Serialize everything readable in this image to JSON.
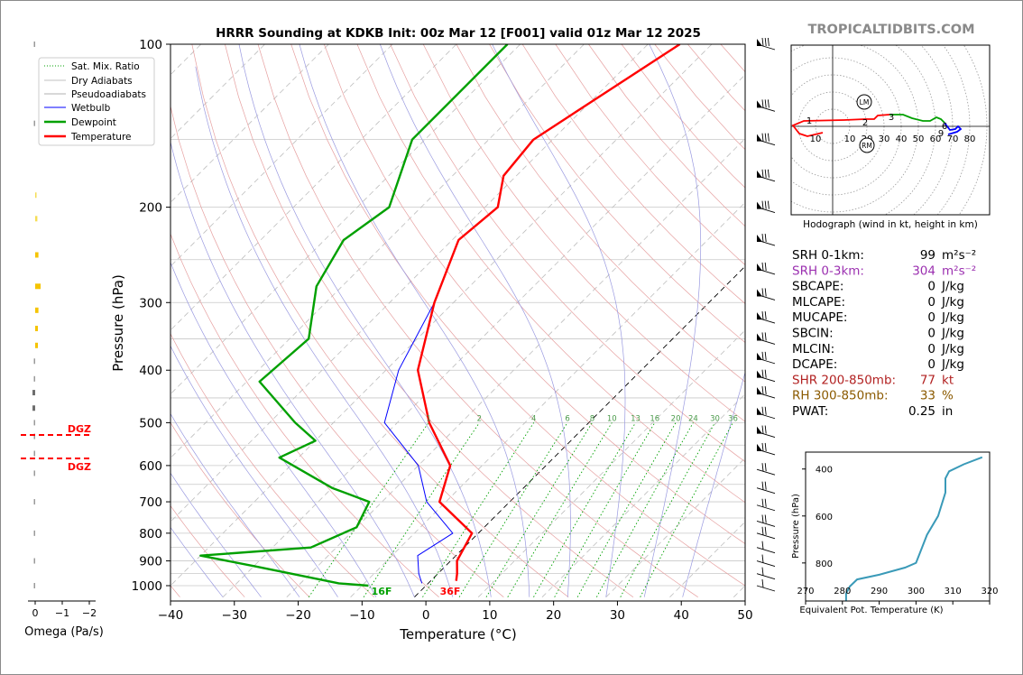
{
  "title": "HRRR Sounding at KDKB Init: 00z Mar 12 [F001] valid 01z Mar 12 2025",
  "watermark": "TROPICALTIDBITS.COM",
  "skewt": {
    "ylabel": "Pressure (hPa)",
    "xlabel": "Temperature (°C)",
    "p_ticks": [
      "100",
      "200",
      "300",
      "400",
      "500",
      "600",
      "700",
      "800",
      "900",
      "1000"
    ],
    "t_ticks": [
      "−40",
      "−30",
      "−20",
      "−10",
      "0",
      "10",
      "20",
      "30",
      "40",
      "50"
    ],
    "mixing_labels": [
      "1",
      "2",
      "4",
      "6",
      "8",
      "10",
      "13",
      "16",
      "20",
      "24",
      "30",
      "36"
    ],
    "sfc_dewpoint_label": "16F",
    "sfc_temp_label": "36F",
    "legend": [
      "Sat. Mix. Ratio",
      "Dry Adiabats",
      "Pseudoadiabats",
      "Wetbulb",
      "Dewpoint",
      "Temperature"
    ]
  },
  "omega": {
    "xlabel": "Omega (Pa/s)",
    "ticks": [
      "0",
      "−1",
      "−2"
    ],
    "dgz_label_top": "DGZ",
    "dgz_label_bottom": "DGZ"
  },
  "hodograph": {
    "caption": "Hodograph (wind in kt, height in km)",
    "ring_labels": [
      "10",
      "20",
      "30",
      "40",
      "50",
      "60",
      "70",
      "80"
    ],
    "left_ring_label": "10",
    "height_labels": [
      "1",
      "2",
      "3",
      "6",
      "9"
    ],
    "lm_label": "LM",
    "rm_label": "RM"
  },
  "indices": [
    {
      "label": "SRH 0-1km:",
      "value": "99",
      "unit": "m²s⁻²",
      "color": "#000000"
    },
    {
      "label": "SRH 0-3km:",
      "value": "304",
      "unit": "m²s⁻²",
      "color": "#9b30b0"
    },
    {
      "label": "SBCAPE:",
      "value": "0",
      "unit": "J/kg",
      "color": "#000000"
    },
    {
      "label": "MLCAPE:",
      "value": "0",
      "unit": "J/kg",
      "color": "#000000"
    },
    {
      "label": "MUCAPE:",
      "value": "0",
      "unit": "J/kg",
      "color": "#000000"
    },
    {
      "label": "SBCIN:",
      "value": "0",
      "unit": "J/kg",
      "color": "#000000"
    },
    {
      "label": "MLCIN:",
      "value": "0",
      "unit": "J/kg",
      "color": "#000000"
    },
    {
      "label": "DCAPE:",
      "value": "0",
      "unit": "J/kg",
      "color": "#000000"
    },
    {
      "label": "SHR 200-850mb:",
      "value": "77",
      "unit": "kt",
      "color": "#b22222"
    },
    {
      "label": "RH 300-850mb:",
      "value": "33",
      "unit": "%",
      "color": "#8b5a00"
    },
    {
      "label": "PWAT:",
      "value": "0.25",
      "unit": "in",
      "color": "#000000"
    }
  ],
  "theta_panel": {
    "xlabel": "Equivalent Pot. Temperature (K)",
    "ylabel": "Pressure (hPa)",
    "x_ticks": [
      "270",
      "280",
      "290",
      "300",
      "310",
      "320"
    ],
    "y_ticks": [
      "400",
      "600",
      "800"
    ]
  },
  "colors": {
    "temperature": "#ff0000",
    "dewpoint": "#00a000",
    "wetbulb": "#0000ff",
    "theta": "#3a9ab8",
    "dgz": "#ff0000"
  },
  "chart_data": [
    {
      "type": "line",
      "title": "HRRR Sounding at KDKB Init: 00z Mar 12 [F001] valid 01z Mar 12 2025",
      "xlabel": "Temperature (°C)",
      "ylabel": "Pressure (hPa)",
      "xlim": [
        -40,
        50
      ],
      "ylim": [
        1050,
        100
      ],
      "y_scale": "log",
      "skew": "skew-T",
      "series": [
        {
          "name": "Temperature",
          "points": [
            [
              -45,
              100
            ],
            [
              -53,
              150
            ],
            [
              -52,
              175
            ],
            [
              -48,
              200
            ],
            [
              -49,
              230
            ],
            [
              -43,
              300
            ],
            [
              -35,
              400
            ],
            [
              -25,
              500
            ],
            [
              -15,
              600
            ],
            [
              -11,
              700
            ],
            [
              -1,
              800
            ],
            [
              1,
              900
            ],
            [
              3,
              950
            ],
            [
              4,
              980
            ]
          ]
        },
        {
          "name": "Dewpoint",
          "points": [
            [
              -72,
              100
            ],
            [
              -72,
              150
            ],
            [
              -65,
              200
            ],
            [
              -67,
              230
            ],
            [
              -64,
              280
            ],
            [
              -57,
              350
            ],
            [
              -58,
              420
            ],
            [
              -46,
              500
            ],
            [
              -40,
              540
            ],
            [
              -43,
              580
            ],
            [
              -30,
              660
            ],
            [
              -22,
              700
            ],
            [
              -20,
              780
            ],
            [
              -24,
              850
            ],
            [
              -40,
              880
            ],
            [
              -30,
              920
            ],
            [
              -14,
              990
            ],
            [
              -9,
              1000
            ]
          ]
        },
        {
          "name": "Wetbulb",
          "points": [
            [
              -45,
              100
            ],
            [
              -53,
              150
            ],
            [
              -52,
              175
            ],
            [
              -48,
              200
            ],
            [
              -49,
              230
            ],
            [
              -43,
              300
            ],
            [
              -38,
              400
            ],
            [
              -32,
              500
            ],
            [
              -20,
              600
            ],
            [
              -13,
              700
            ],
            [
              -4,
              800
            ],
            [
              -6,
              880
            ],
            [
              -3,
              950
            ],
            [
              -1,
              990
            ]
          ]
        }
      ]
    },
    {
      "type": "line",
      "title": "",
      "xlabel": "Equivalent Pot. Temperature (K)",
      "ylabel": "Pressure (hPa)",
      "xlim": [
        270,
        320
      ],
      "ylim": [
        960,
        350
      ],
      "series": [
        {
          "name": "",
          "points": [
            [
              318,
              350
            ],
            [
              313,
              380
            ],
            [
              309,
              410
            ],
            [
              308,
              440
            ],
            [
              308,
              500
            ],
            [
              306,
              600
            ],
            [
              303,
              680
            ],
            [
              301,
              760
            ],
            [
              300,
              800
            ],
            [
              297,
              820
            ],
            [
              290,
              850
            ],
            [
              284,
              870
            ],
            [
              282,
              900
            ],
            [
              281,
              930
            ],
            [
              281,
              960
            ]
          ]
        }
      ]
    },
    {
      "type": "bar",
      "title": "",
      "xlabel": "Omega (Pa/s)",
      "ylabel": "",
      "xlim": [
        0.2,
        -2.2
      ],
      "categories": [
        100,
        140,
        190,
        210,
        245,
        280,
        310,
        335,
        360,
        385,
        415,
        440,
        470,
        500,
        530,
        570,
        620,
        700,
        800,
        900,
        1000
      ],
      "values": [
        0,
        0,
        -0.05,
        -0.08,
        -0.12,
        -0.2,
        -0.12,
        -0.1,
        -0.1,
        0,
        0.05,
        0.1,
        0.1,
        0.05,
        0.05,
        0,
        0,
        0,
        0,
        0,
        0
      ]
    }
  ]
}
